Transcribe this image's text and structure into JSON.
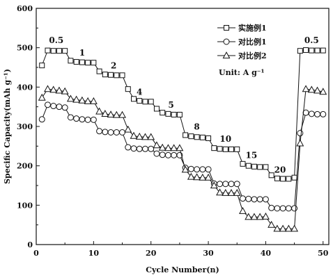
{
  "chart_data": {
    "type": "scatter",
    "xlabel": "Cycle Number(n)",
    "ylabel": "Specific Capacity(mAh g⁻¹)",
    "xlim": [
      0,
      51
    ],
    "ylim": [
      0,
      600
    ],
    "xticks": [
      0,
      10,
      20,
      30,
      40,
      50
    ],
    "yticks": [
      0,
      100,
      200,
      300,
      400,
      500,
      600
    ],
    "grid": false,
    "legend_position": "top-right",
    "unit_text": "Unit: A g⁻¹",
    "series": [
      {
        "name": "实施例1",
        "marker": "square",
        "x": [
          1,
          2,
          3,
          4,
          5,
          6,
          7,
          8,
          9,
          10,
          11,
          12,
          13,
          14,
          15,
          16,
          17,
          18,
          19,
          20,
          21,
          22,
          23,
          24,
          25,
          26,
          27,
          28,
          29,
          30,
          31,
          32,
          33,
          34,
          35,
          36,
          37,
          38,
          39,
          40,
          41,
          42,
          43,
          44,
          45,
          46,
          47,
          48,
          49,
          50
        ],
        "values": [
          455,
          493,
          492,
          492,
          492,
          467,
          464,
          463,
          462,
          462,
          440,
          432,
          431,
          430,
          430,
          395,
          370,
          365,
          363,
          363,
          345,
          335,
          332,
          330,
          330,
          278,
          275,
          273,
          272,
          270,
          245,
          243,
          242,
          242,
          242,
          205,
          200,
          198,
          197,
          197,
          176,
          168,
          167,
          167,
          170,
          492,
          494,
          493,
          493,
          493
        ]
      },
      {
        "name": "对比例1",
        "marker": "circle",
        "x": [
          1,
          2,
          3,
          4,
          5,
          6,
          7,
          8,
          9,
          10,
          11,
          12,
          13,
          14,
          15,
          16,
          17,
          18,
          19,
          20,
          21,
          22,
          23,
          24,
          25,
          26,
          27,
          28,
          29,
          30,
          31,
          32,
          33,
          34,
          35,
          36,
          37,
          38,
          39,
          40,
          41,
          42,
          43,
          44,
          45,
          46,
          47,
          48,
          49,
          50
        ],
        "values": [
          318,
          355,
          352,
          350,
          348,
          323,
          320,
          318,
          317,
          317,
          288,
          286,
          285,
          285,
          285,
          247,
          244,
          243,
          243,
          243,
          231,
          228,
          227,
          227,
          227,
          195,
          192,
          191,
          191,
          191,
          155,
          154,
          154,
          154,
          154,
          117,
          116,
          115,
          115,
          115,
          93,
          92,
          92,
          92,
          92,
          283,
          335,
          332,
          331,
          331
        ]
      },
      {
        "name": "对比例2",
        "marker": "triangle",
        "x": [
          1,
          2,
          3,
          4,
          5,
          6,
          7,
          8,
          9,
          10,
          11,
          12,
          13,
          14,
          15,
          16,
          17,
          18,
          19,
          20,
          21,
          22,
          23,
          24,
          25,
          26,
          27,
          28,
          29,
          30,
          31,
          32,
          33,
          34,
          35,
          36,
          37,
          38,
          39,
          40,
          41,
          42,
          43,
          44,
          45,
          46,
          47,
          48,
          49,
          50
        ],
        "values": [
          373,
          395,
          393,
          391,
          389,
          370,
          368,
          366,
          364,
          364,
          338,
          332,
          330,
          329,
          329,
          292,
          276,
          274,
          273,
          273,
          252,
          246,
          245,
          245,
          245,
          190,
          172,
          171,
          170,
          170,
          150,
          132,
          131,
          131,
          131,
          85,
          70,
          70,
          70,
          71,
          50,
          40,
          40,
          40,
          40,
          257,
          395,
          393,
          391,
          388
        ]
      }
    ],
    "annotations": [
      {
        "text": "0.5",
        "x": 3.5,
        "y": 512
      },
      {
        "text": "1",
        "x": 8.0,
        "y": 480
      },
      {
        "text": "2",
        "x": 13.5,
        "y": 447
      },
      {
        "text": "4",
        "x": 18.0,
        "y": 380
      },
      {
        "text": "5",
        "x": 23.5,
        "y": 348
      },
      {
        "text": "8",
        "x": 28.0,
        "y": 292
      },
      {
        "text": "10",
        "x": 33.0,
        "y": 261
      },
      {
        "text": "15",
        "x": 37.5,
        "y": 220
      },
      {
        "text": "20",
        "x": 42.5,
        "y": 183
      },
      {
        "text": "0.5",
        "x": 48.0,
        "y": 512
      }
    ]
  },
  "colors": {
    "stroke": "#111111",
    "marker_fill": "#ffffff",
    "background": "#ffffff"
  }
}
